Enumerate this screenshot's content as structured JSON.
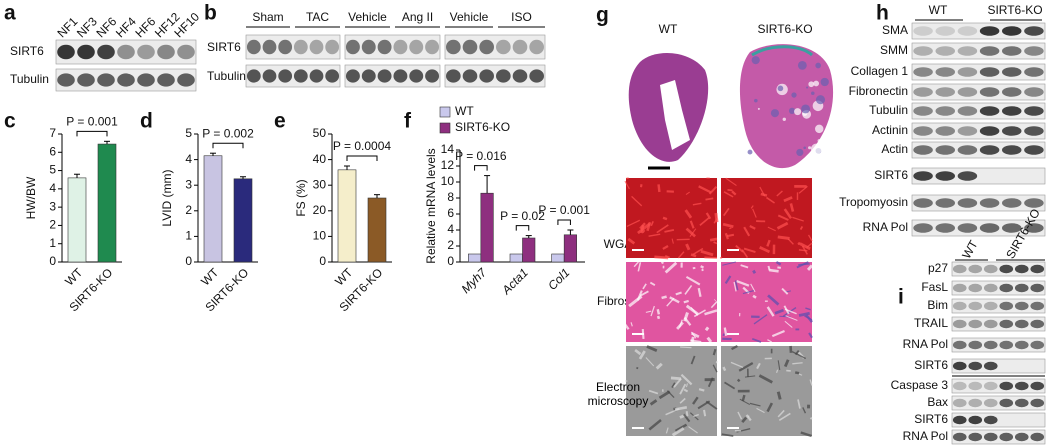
{
  "panel_labels": [
    "a",
    "b",
    "c",
    "d",
    "e",
    "f",
    "g",
    "h",
    "i"
  ],
  "blot_a": {
    "lanes": [
      "NF1",
      "NF3",
      "NF6",
      "HF4",
      "HF6",
      "HF12",
      "HF10"
    ],
    "rows": [
      "SIRT6",
      "Tubulin"
    ]
  },
  "blot_b": {
    "groups": [
      "Sham",
      "TAC",
      "Vehicle",
      "Ang II",
      "Vehicle",
      "ISO"
    ],
    "rows": [
      "SIRT6",
      "Tubulin"
    ]
  },
  "chart_data": [
    {
      "type": "bar",
      "categories": [
        "WT",
        "SIRT6-KO"
      ],
      "values": [
        4.6,
        6.45
      ],
      "errors": [
        0.2,
        0.15
      ],
      "colors": [
        "#dff2e6",
        "#1f8a4f"
      ],
      "ylabel": "HW/BW",
      "ylim": [
        0,
        7
      ],
      "yticks": [
        0,
        1,
        2,
        3,
        4,
        5,
        6,
        7
      ],
      "annotation": "P = 0.001"
    },
    {
      "type": "bar",
      "categories": [
        "WT",
        "SIRT6-KO"
      ],
      "values": [
        4.15,
        3.25
      ],
      "errors": [
        0.1,
        0.08
      ],
      "colors": [
        "#c8c4e2",
        "#2a2a7c"
      ],
      "ylabel": "LVID (mm)",
      "ylim": [
        0,
        5
      ],
      "yticks": [
        0,
        1,
        2,
        3,
        4,
        5
      ],
      "annotation": "P = 0.002"
    },
    {
      "type": "bar",
      "categories": [
        "WT",
        "SIRT6-KO"
      ],
      "values": [
        36,
        25
      ],
      "errors": [
        1.5,
        1.3
      ],
      "colors": [
        "#f5eecb",
        "#8b5a26"
      ],
      "ylabel": "FS (%)",
      "ylim": [
        0,
        50
      ],
      "yticks": [
        0,
        10,
        20,
        30,
        40,
        50
      ],
      "annotation": "P = 0.0004"
    },
    {
      "type": "grouped_bar",
      "categories": [
        "Myh7",
        "Acta1",
        "Col1"
      ],
      "series": [
        {
          "name": "WT",
          "color": "#c9c8ec",
          "values": [
            1,
            1,
            1
          ]
        },
        {
          "name": "SIRT6-KO",
          "color": "#8e2f7f",
          "values": [
            8.6,
            3.0,
            3.4
          ],
          "errors": [
            2.2,
            0.3,
            0.6
          ]
        }
      ],
      "ylabel": "Relative mRNA levels",
      "ylim": [
        0,
        14
      ],
      "yticks": [
        0,
        2,
        4,
        6,
        8,
        10,
        12,
        14
      ],
      "annotations": [
        "P = 0.016",
        "P = 0.02",
        "P = 0.001"
      ]
    }
  ],
  "histology_g": {
    "columns": [
      "WT",
      "SIRT6-KO"
    ],
    "rows": [
      "WGA",
      "Fibrosis",
      "Electron microscopy"
    ]
  },
  "blot_h": {
    "columns": [
      "WT",
      "SIRT6-KO"
    ],
    "rows": [
      "SMA",
      "SMM",
      "Collagen 1",
      "Fibronectin",
      "Tubulin",
      "Actinin",
      "Actin",
      "SIRT6",
      "Tropomyosin",
      "RNA Pol"
    ]
  },
  "blot_i": {
    "columns": [
      "WT",
      "SIRT6-KO"
    ],
    "rows": [
      "p27",
      "FasL",
      "Bim",
      "TRAIL",
      "RNA Pol",
      "SIRT6",
      "Caspase 3",
      "Bax",
      "SIRT6",
      "RNA Pol"
    ]
  }
}
